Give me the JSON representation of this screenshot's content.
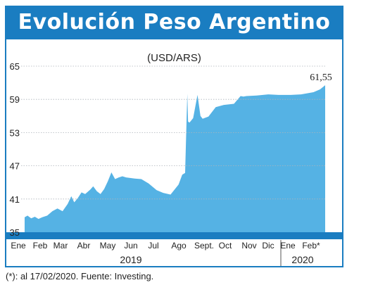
{
  "chart_data": {
    "type": "area",
    "title": "Evolución Peso Argentino",
    "subtitle": "(USD/ARS)",
    "ylim": [
      35,
      65
    ],
    "yticks": [
      "35",
      "41",
      "47",
      "53",
      "59",
      "65"
    ],
    "ytick_values": [
      35,
      41,
      47,
      53,
      59,
      65
    ],
    "months": [
      "Ene",
      "Feb",
      "Mar",
      "Abr",
      "May",
      "Jun",
      "Jul",
      "Ago",
      "Sept.",
      "Oct",
      "Nov",
      "Dic",
      "Ene",
      "Feb*"
    ],
    "years": [
      "2019",
      "2020"
    ],
    "last_value_label": "61,55",
    "color": "#55b2e4",
    "accent": "#1a7dc1",
    "x": [
      "2019-01-01",
      "2019-01-05",
      "2019-01-10",
      "2019-01-15",
      "2019-01-20",
      "2019-01-25",
      "2019-02-01",
      "2019-02-08",
      "2019-02-15",
      "2019-02-22",
      "2019-03-01",
      "2019-03-06",
      "2019-03-10",
      "2019-03-15",
      "2019-03-20",
      "2019-03-25",
      "2019-04-01",
      "2019-04-05",
      "2019-04-10",
      "2019-04-15",
      "2019-04-20",
      "2019-04-25",
      "2019-04-30",
      "2019-05-05",
      "2019-05-10",
      "2019-05-15",
      "2019-05-20",
      "2019-06-01",
      "2019-06-10",
      "2019-06-20",
      "2019-07-01",
      "2019-07-10",
      "2019-07-20",
      "2019-07-31",
      "2019-08-05",
      "2019-08-09",
      "2019-08-12",
      "2019-08-13",
      "2019-08-15",
      "2019-08-20",
      "2019-08-26",
      "2019-08-30",
      "2019-09-02",
      "2019-09-10",
      "2019-09-20",
      "2019-10-01",
      "2019-10-15",
      "2019-10-24",
      "2019-10-28",
      "2019-11-01",
      "2019-11-15",
      "2019-12-01",
      "2019-12-15",
      "2020-01-01",
      "2020-01-15",
      "2020-02-01",
      "2020-02-10",
      "2020-02-17"
    ],
    "values": [
      37.7,
      38.0,
      37.5,
      37.8,
      37.4,
      37.7,
      38.0,
      38.8,
      39.3,
      38.8,
      40.1,
      41.5,
      40.4,
      41.2,
      42.2,
      41.9,
      42.7,
      43.3,
      42.4,
      41.9,
      42.8,
      44.2,
      45.8,
      44.6,
      44.9,
      45.1,
      44.9,
      44.7,
      44.6,
      43.8,
      42.6,
      42.1,
      41.8,
      43.6,
      45.4,
      45.7,
      60.0,
      55.0,
      54.8,
      55.6,
      59.8,
      56.0,
      55.5,
      55.9,
      57.6,
      58.0,
      58.2,
      59.6,
      59.5,
      59.6,
      59.7,
      59.9,
      59.8,
      59.8,
      59.9,
      60.3,
      60.8,
      61.55
    ]
  },
  "footnote": "(*): al 17/02/2020. Fuente: Investing."
}
